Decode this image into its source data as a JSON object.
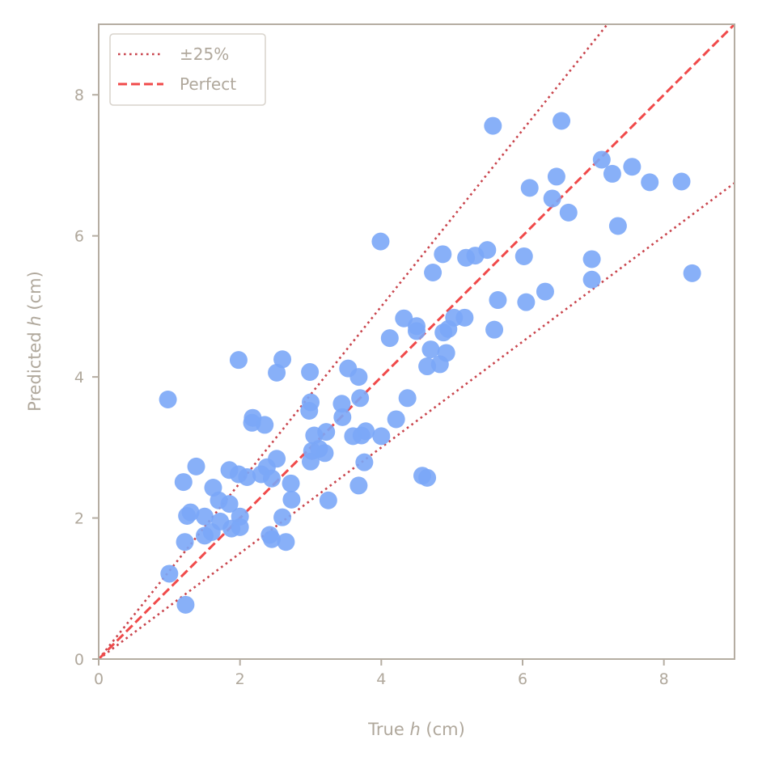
{
  "chart_data": {
    "type": "scatter",
    "xlabel": {
      "pre": "True ",
      "var": "h",
      "post": " (cm)"
    },
    "ylabel": {
      "pre": "Predicted ",
      "var": "h",
      "post": " (cm)"
    },
    "xlim": [
      0,
      9
    ],
    "ylim": [
      0,
      9
    ],
    "xticks": [
      0,
      2,
      4,
      6,
      8
    ],
    "yticks": [
      0,
      2,
      4,
      6,
      8
    ],
    "grid": false,
    "legend_position": "top-left",
    "legend": [
      {
        "label": "±25%",
        "style": "dotted"
      },
      {
        "label": "Perfect",
        "style": "dashed"
      }
    ],
    "colors": {
      "points": "#7ba7f7",
      "perfect_line": "#f04a4a",
      "band_line": "#c9444c",
      "axes": "#b5ada2",
      "text": "#b0a89c"
    },
    "reference_lines": {
      "perfect_slope": 1.0,
      "band_slopes": [
        1.25,
        0.75
      ]
    },
    "points": [
      [
        0.98,
        3.68
      ],
      [
        1.0,
        1.21
      ],
      [
        1.2,
        2.51
      ],
      [
        1.22,
        1.66
      ],
      [
        1.23,
        0.77
      ],
      [
        1.25,
        2.03
      ],
      [
        1.3,
        2.08
      ],
      [
        1.38,
        2.73
      ],
      [
        1.5,
        1.75
      ],
      [
        1.5,
        2.02
      ],
      [
        1.6,
        1.8
      ],
      [
        1.62,
        2.43
      ],
      [
        1.7,
        2.25
      ],
      [
        1.72,
        1.95
      ],
      [
        1.85,
        2.68
      ],
      [
        1.85,
        2.2
      ],
      [
        1.88,
        1.85
      ],
      [
        1.98,
        4.24
      ],
      [
        1.98,
        2.62
      ],
      [
        2.0,
        1.87
      ],
      [
        2.0,
        2.02
      ],
      [
        2.1,
        2.58
      ],
      [
        2.17,
        3.35
      ],
      [
        2.18,
        3.42
      ],
      [
        2.3,
        2.62
      ],
      [
        2.35,
        3.32
      ],
      [
        2.38,
        2.72
      ],
      [
        2.42,
        1.76
      ],
      [
        2.45,
        2.56
      ],
      [
        2.45,
        1.7
      ],
      [
        2.52,
        4.06
      ],
      [
        2.52,
        2.84
      ],
      [
        2.6,
        4.25
      ],
      [
        2.6,
        2.01
      ],
      [
        2.65,
        1.66
      ],
      [
        2.72,
        2.49
      ],
      [
        2.73,
        2.26
      ],
      [
        2.98,
        3.52
      ],
      [
        2.99,
        4.07
      ],
      [
        3.0,
        3.64
      ],
      [
        3.0,
        2.8
      ],
      [
        3.02,
        2.95
      ],
      [
        3.05,
        3.17
      ],
      [
        3.12,
        2.98
      ],
      [
        3.2,
        2.92
      ],
      [
        3.22,
        3.22
      ],
      [
        3.25,
        2.25
      ],
      [
        3.44,
        3.62
      ],
      [
        3.45,
        3.43
      ],
      [
        3.53,
        4.12
      ],
      [
        3.6,
        3.16
      ],
      [
        3.68,
        4.0
      ],
      [
        3.68,
        2.46
      ],
      [
        3.7,
        3.7
      ],
      [
        3.72,
        3.17
      ],
      [
        3.76,
        2.79
      ],
      [
        3.78,
        3.23
      ],
      [
        3.99,
        5.92
      ],
      [
        4.0,
        3.16
      ],
      [
        4.12,
        4.55
      ],
      [
        4.21,
        3.4
      ],
      [
        4.32,
        4.83
      ],
      [
        4.37,
        3.7
      ],
      [
        4.5,
        4.72
      ],
      [
        4.5,
        4.65
      ],
      [
        4.58,
        2.6
      ],
      [
        4.65,
        2.57
      ],
      [
        4.65,
        4.15
      ],
      [
        4.7,
        4.39
      ],
      [
        4.73,
        5.48
      ],
      [
        4.83,
        4.18
      ],
      [
        4.87,
        5.74
      ],
      [
        4.88,
        4.63
      ],
      [
        4.92,
        4.34
      ],
      [
        4.95,
        4.68
      ],
      [
        5.03,
        4.84
      ],
      [
        5.18,
        4.84
      ],
      [
        5.2,
        5.69
      ],
      [
        5.33,
        5.72
      ],
      [
        5.5,
        5.8
      ],
      [
        5.58,
        7.56
      ],
      [
        5.6,
        4.67
      ],
      [
        5.65,
        5.09
      ],
      [
        6.02,
        5.71
      ],
      [
        6.05,
        5.06
      ],
      [
        6.1,
        6.68
      ],
      [
        6.32,
        5.21
      ],
      [
        6.42,
        6.53
      ],
      [
        6.48,
        6.84
      ],
      [
        6.55,
        7.63
      ],
      [
        6.65,
        6.33
      ],
      [
        6.98,
        5.67
      ],
      [
        6.98,
        5.38
      ],
      [
        7.12,
        7.08
      ],
      [
        7.27,
        6.88
      ],
      [
        7.35,
        6.14
      ],
      [
        7.55,
        6.98
      ],
      [
        7.8,
        6.76
      ],
      [
        8.25,
        6.77
      ],
      [
        8.4,
        5.47
      ]
    ]
  }
}
